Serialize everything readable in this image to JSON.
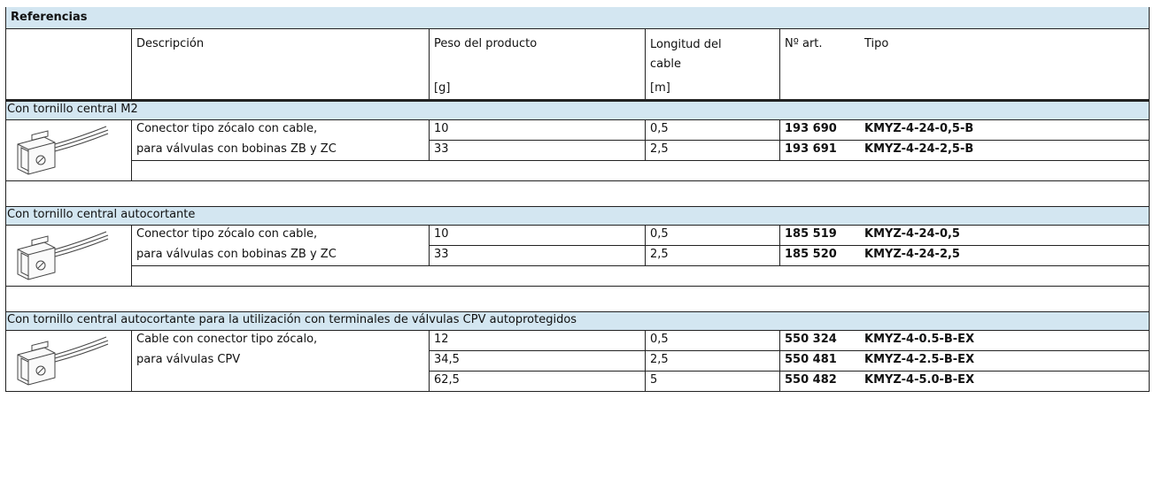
{
  "header": {
    "title": "Referencias"
  },
  "columns": {
    "description": "Descripción",
    "weight": "Peso del producto",
    "weight_unit": "[g]",
    "length": "Longitud del cable",
    "length_unit": "[m]",
    "article": "Nº art.",
    "type": "Tipo"
  },
  "sections": [
    {
      "title": "Con tornillo central M2",
      "description": [
        "Conector tipo zócalo con cable,",
        "para válvulas con bobinas ZB y ZC"
      ],
      "rows": [
        {
          "weight": "10",
          "length": "0,5",
          "article": "193 690",
          "type": "KMYZ-4-24-0,5-B"
        },
        {
          "weight": "33",
          "length": "2,5",
          "article": "193 691",
          "type": "KMYZ-4-24-2,5-B"
        }
      ]
    },
    {
      "title": "Con tornillo central autocortante",
      "description": [
        "Conector tipo zócalo con cable,",
        "para válvulas con bobinas ZB y ZC"
      ],
      "rows": [
        {
          "weight": "10",
          "length": "0,5",
          "article": "185 519",
          "type": "KMYZ-4-24-0,5"
        },
        {
          "weight": "33",
          "length": "2,5",
          "article": "185 520",
          "type": "KMYZ-4-24-2,5"
        }
      ]
    },
    {
      "title": "Con tornillo central autocortante para la utilización con terminales de válvulas CPV autoprotegidos",
      "description": [
        "Cable con conector tipo zócalo,",
        "para válvulas CPV"
      ],
      "rows": [
        {
          "weight": "12",
          "length": "0,5",
          "article": "550 324",
          "type": "KMYZ-4-0.5-B-EX"
        },
        {
          "weight": "34,5",
          "length": "2,5",
          "article": "550 481",
          "type": "KMYZ-4-2.5-B-EX"
        },
        {
          "weight": "62,5",
          "length": "5",
          "article": "550 482",
          "type": "KMYZ-4-5.0-B-EX"
        }
      ]
    }
  ]
}
